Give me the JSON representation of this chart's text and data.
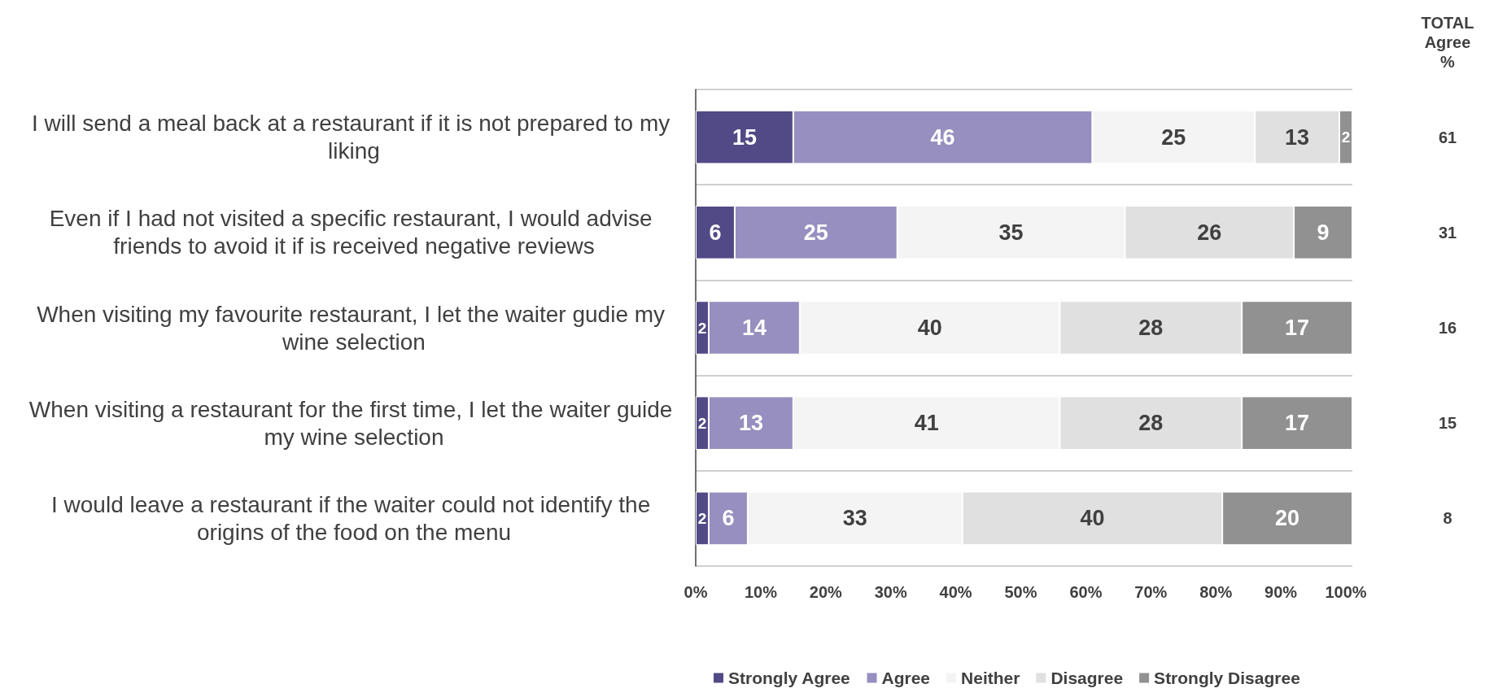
{
  "chart_data": {
    "type": "bar",
    "orientation": "horizontal",
    "stacked": true,
    "data_labels": true,
    "grid": "y",
    "legend": "bottom",
    "categories": [
      "I will send a meal back at a restaurant if it is not prepared to my liking",
      "Even if I had not visited a specific restaurant, I would advise friends to avoid it if is received negative reviews",
      "When visiting my favourite restaurant, I let the waiter gudie my wine selection",
      "When visiting a restaurant for the first time, I let the waiter guide my wine selection",
      "I would leave a restaurant if the waiter could not identify the origins of the food on the menu"
    ],
    "series": [
      {
        "name": "Strongly Agree",
        "color": "#514a86",
        "values": [
          15,
          6,
          2,
          2,
          2
        ]
      },
      {
        "name": "Agree",
        "color": "#968fbf",
        "values": [
          46,
          25,
          14,
          13,
          6
        ]
      },
      {
        "name": "Neither",
        "color": "#f4f4f4",
        "values": [
          25,
          35,
          40,
          41,
          33
        ]
      },
      {
        "name": "Disagree",
        "color": "#e0e0e0",
        "values": [
          13,
          26,
          28,
          28,
          40
        ]
      },
      {
        "name": "Strongly Disagree",
        "color": "#919191",
        "values": [
          2,
          9,
          17,
          17,
          20
        ]
      }
    ],
    "xlim": [
      0,
      101
    ],
    "xticks": [
      {
        "value": 0,
        "label": "0%"
      },
      {
        "value": 10,
        "label": "10%"
      },
      {
        "value": 20,
        "label": "20%"
      },
      {
        "value": 30,
        "label": "30%"
      },
      {
        "value": 40,
        "label": "40%"
      },
      {
        "value": 50,
        "label": "50%"
      },
      {
        "value": 60,
        "label": "60%"
      },
      {
        "value": 70,
        "label": "70%"
      },
      {
        "value": 80,
        "label": "80%"
      },
      {
        "value": 90,
        "label": "90%"
      },
      {
        "value": 100,
        "label": "100%"
      }
    ],
    "annotations": [
      "TOTAL\nAgree\n%",
      "61",
      "31",
      "16",
      "15",
      "8"
    ]
  }
}
